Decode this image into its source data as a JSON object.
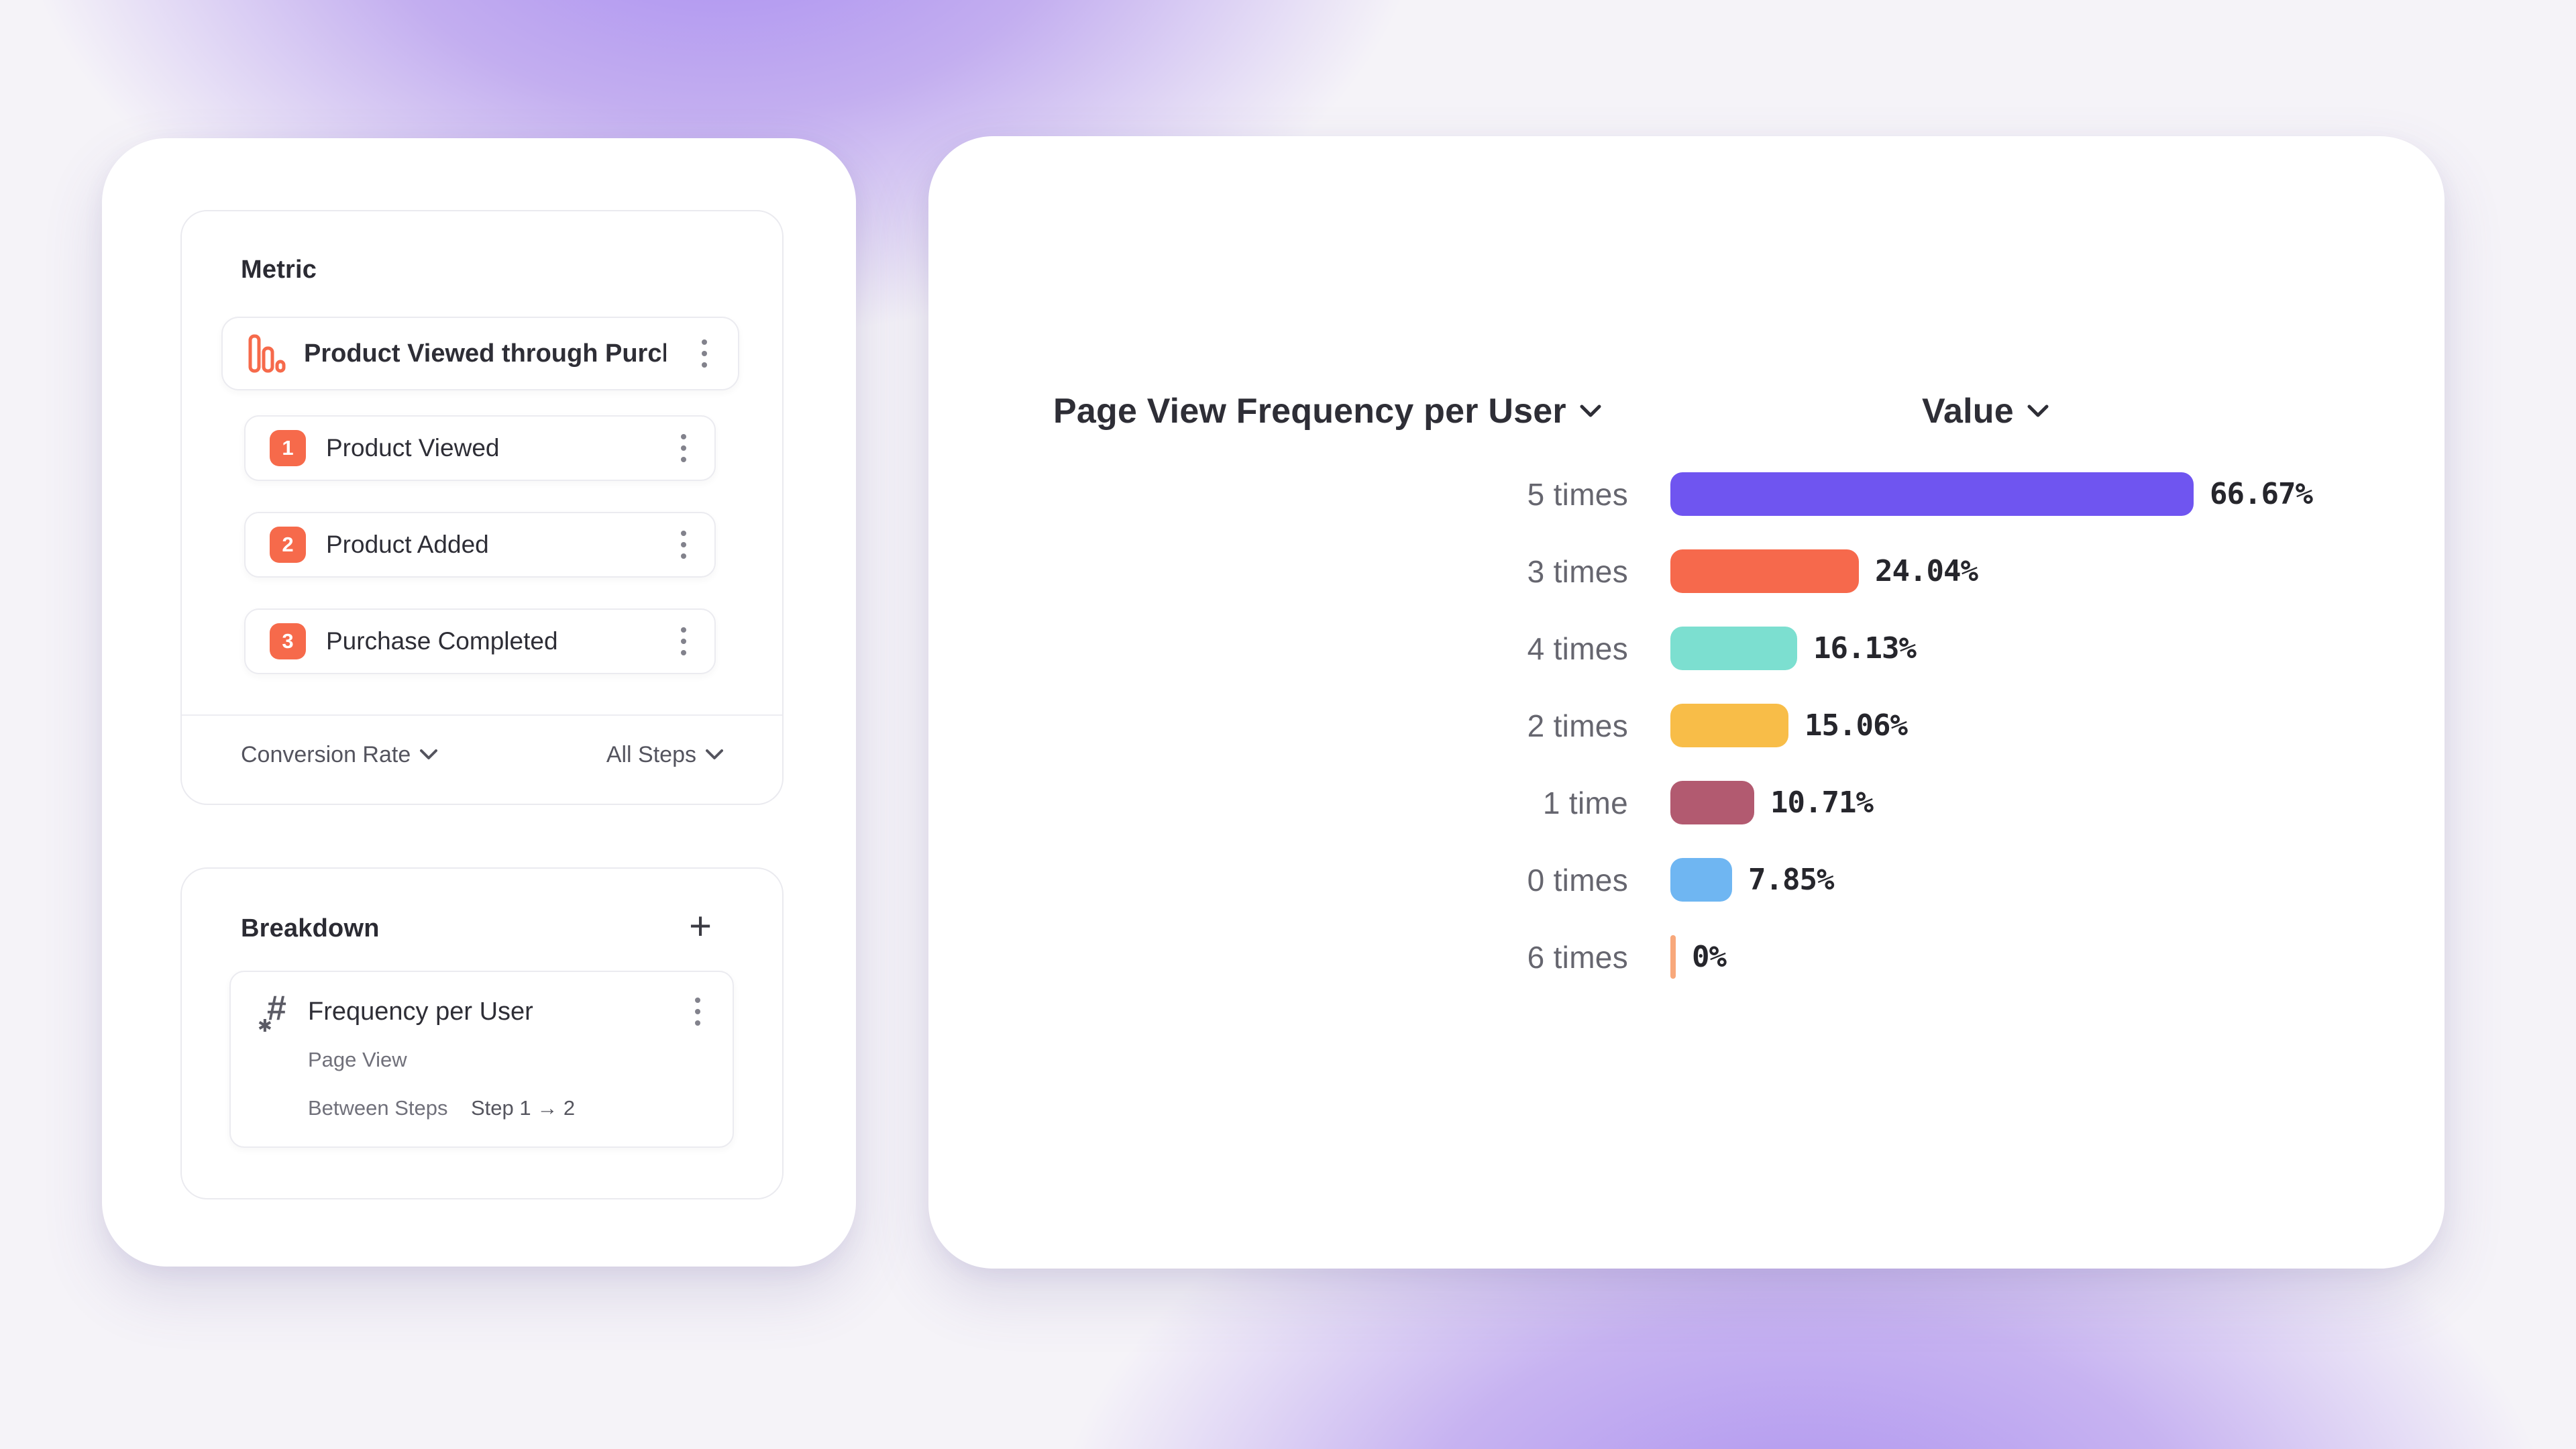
{
  "metric_panel": {
    "title": "Metric",
    "funnel": {
      "title": "Product Viewed through Purch...",
      "icon": "bar-chart-descending-icon",
      "icon_color": "#f66a4b",
      "steps": [
        {
          "num": "1",
          "label": "Product Viewed"
        },
        {
          "num": "2",
          "label": "Product Added"
        },
        {
          "num": "3",
          "label": "Purchase Completed"
        }
      ],
      "step_badge_color": "#f66a4b"
    },
    "footer": {
      "measure_dropdown": "Conversion Rate",
      "steps_dropdown": "All Steps"
    }
  },
  "breakdown_panel": {
    "title": "Breakdown",
    "add_button": "+",
    "item": {
      "icon": "numeric-property-icon",
      "hash_glyph": "#",
      "star_glyph": "✱",
      "title": "Frequency per User",
      "event": "Page View",
      "between_label": "Between Steps",
      "steps_label": "Step 1 → 2"
    }
  },
  "chart": {
    "left_header": "Page View Frequency per User",
    "right_header": "Value"
  },
  "chart_data": {
    "type": "bar",
    "orientation": "horizontal",
    "title": "Page View Frequency per User",
    "value_column": "Value",
    "categories": [
      "5 times",
      "3 times",
      "4 times",
      "2 times",
      "1 time",
      "0 times",
      "6 times"
    ],
    "values": [
      66.67,
      24.04,
      16.13,
      15.06,
      10.71,
      7.85,
      0
    ],
    "value_labels": [
      "66.67%",
      "24.04%",
      "16.13%",
      "15.06%",
      "10.71%",
      "7.85%",
      "0%"
    ],
    "colors": [
      "#6f55f0",
      "#f6694c",
      "#7cdfd0",
      "#f8bd48",
      "#b25a70",
      "#6fb6f2",
      "#f8a87b"
    ],
    "xlim": [
      0,
      100
    ],
    "grid": false,
    "legend": false,
    "sort": "descending by value"
  }
}
